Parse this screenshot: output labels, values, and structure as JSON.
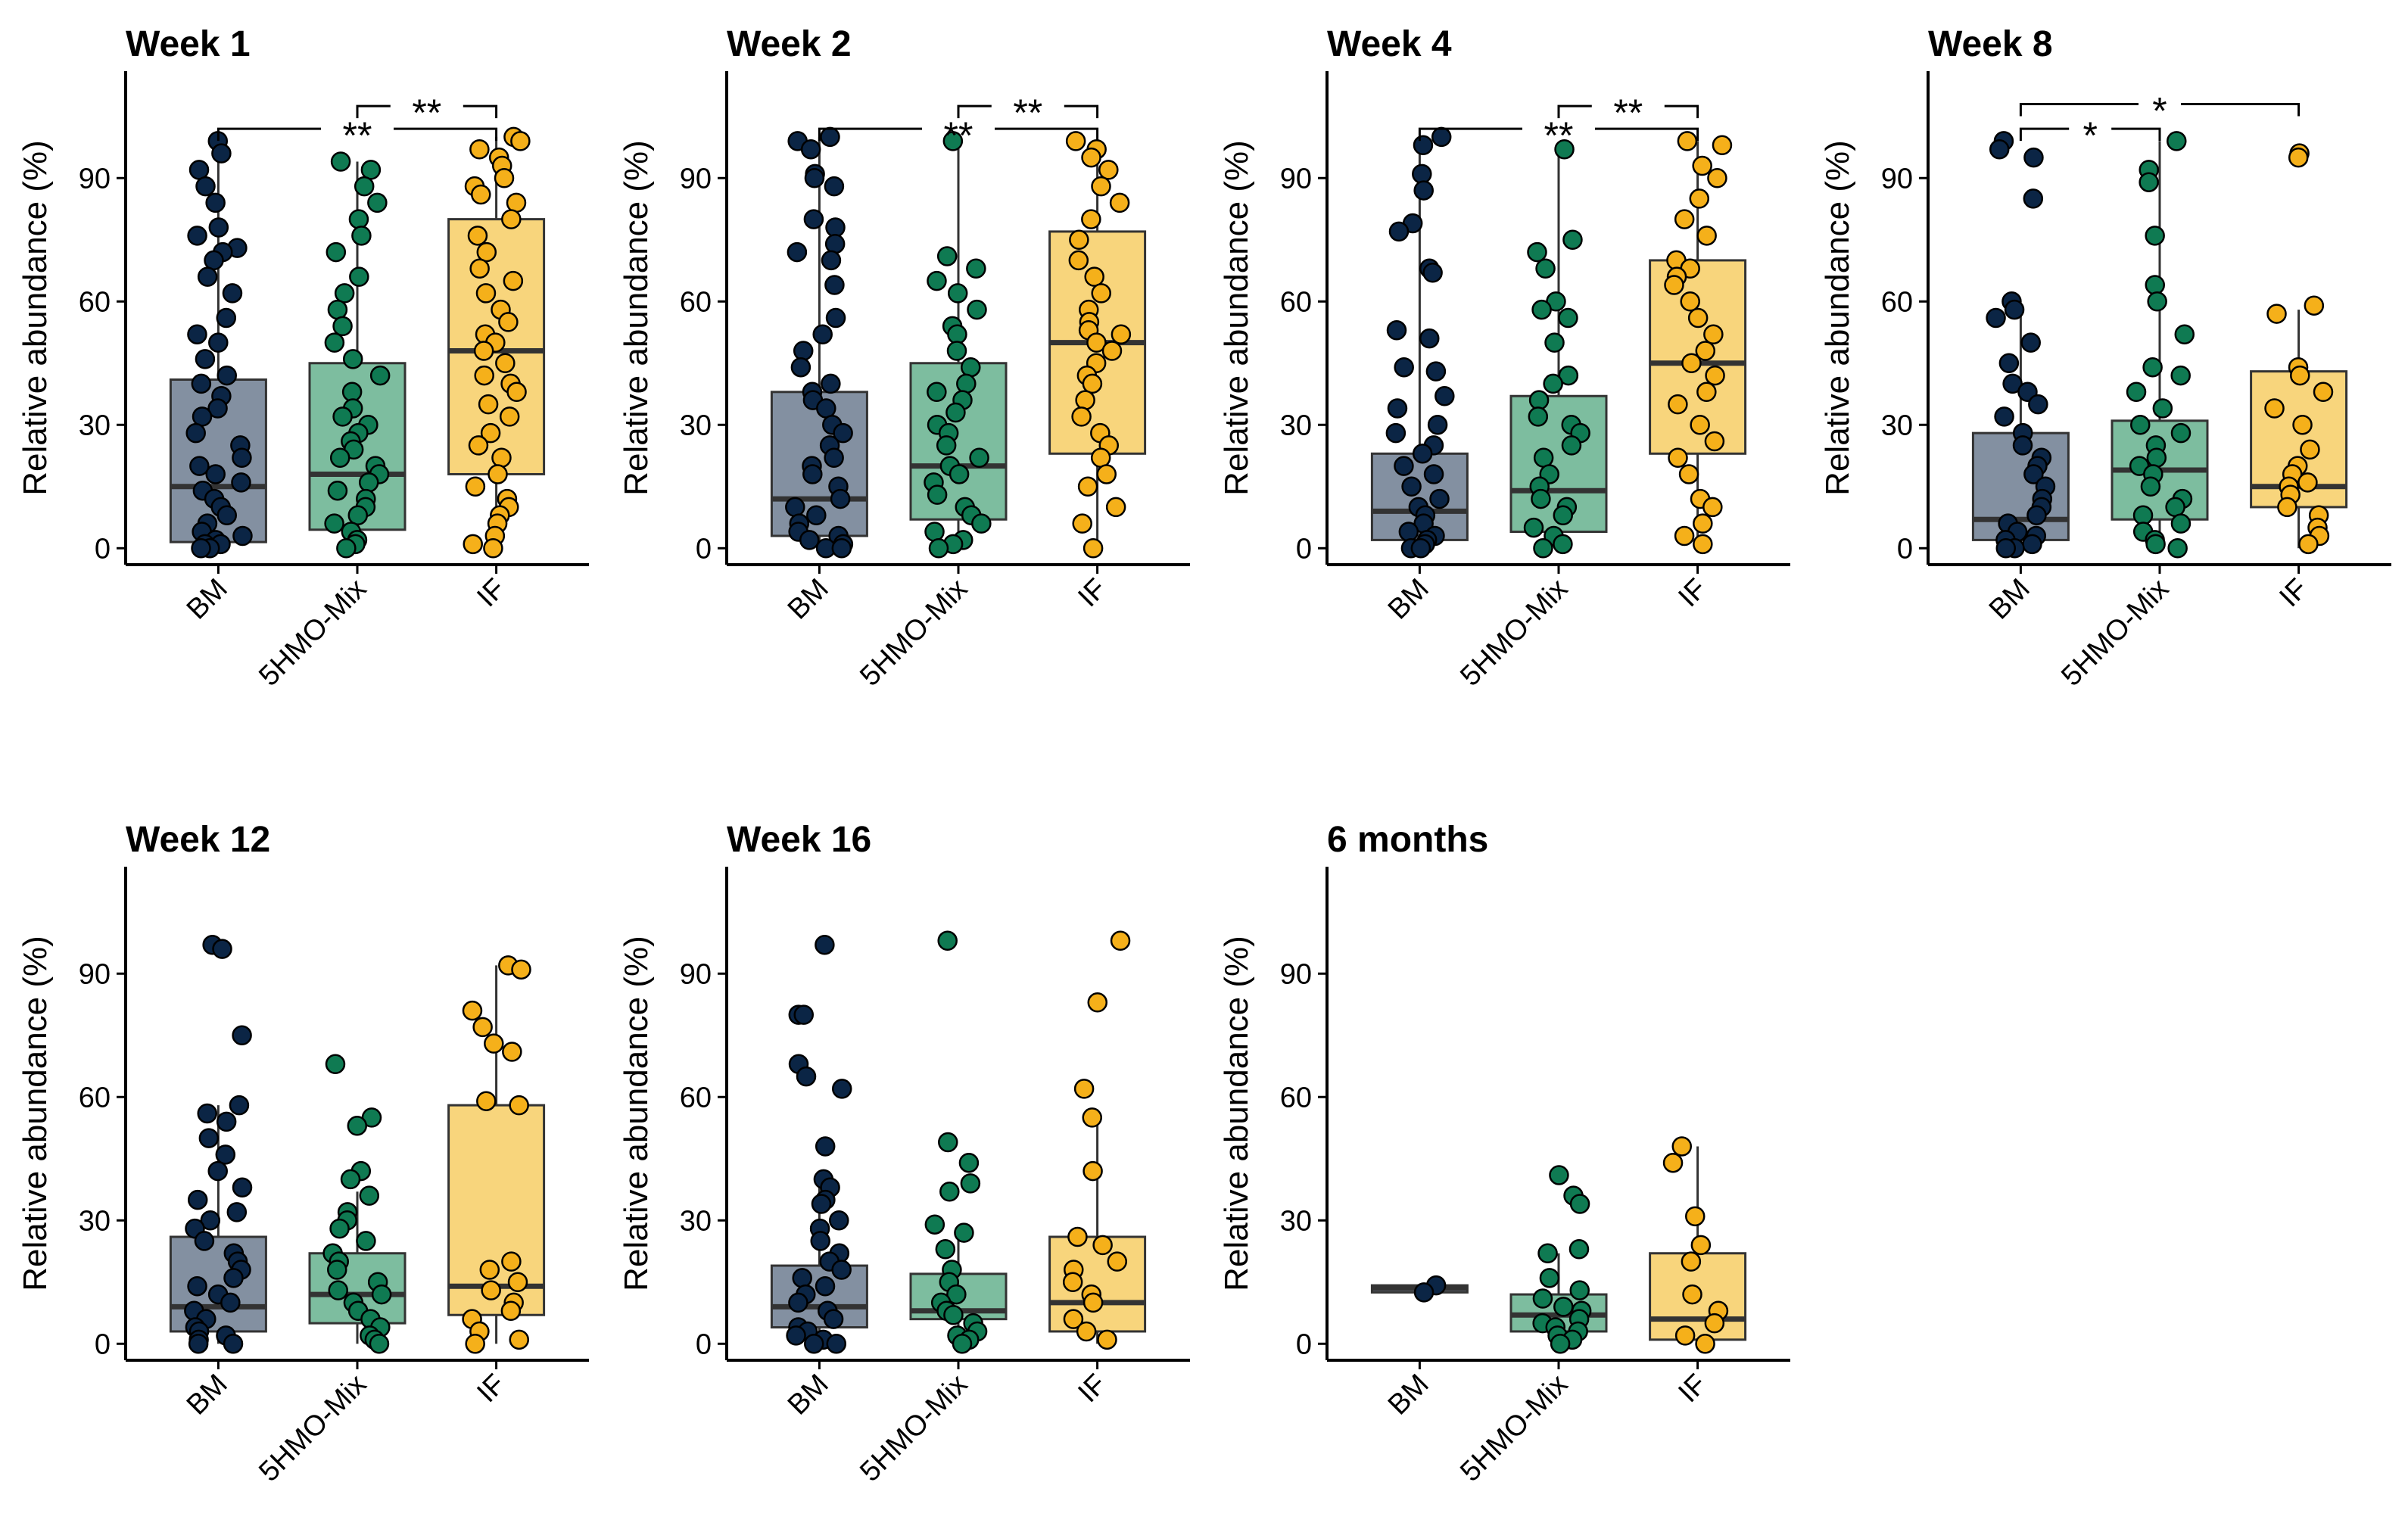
{
  "figure": {
    "ylabel": "Relative abundance (%)"
  },
  "colors": {
    "BM": {
      "box": "#8390a1",
      "point": "#0b2545"
    },
    "5HMO-Mix": {
      "box": "#7dbd9f",
      "point": "#0f7a52"
    },
    "IF": {
      "box": "#f8d57c",
      "point": "#f5b01a"
    },
    "median": "#333333",
    "outline": "#333333",
    "axis": "#000000"
  },
  "chart_data": [
    {
      "type": "box",
      "title": "Week 1",
      "ylabel": "Relative abundance (%)",
      "ylim": [
        -4,
        116
      ],
      "yticks": [
        0,
        30,
        60,
        90
      ],
      "categories": [
        "BM",
        "5HMO-Mix",
        "IF"
      ],
      "boxes": [
        {
          "q1": 1.5,
          "median": 15,
          "q3": 41,
          "wmin": 0,
          "wmax": 99
        },
        {
          "q1": 4.5,
          "median": 18,
          "q3": 45,
          "wmin": 0,
          "wmax": 94
        },
        {
          "q1": 18,
          "median": 48,
          "q3": 80,
          "wmin": 0,
          "wmax": 100
        }
      ],
      "points": [
        [
          99,
          96,
          92,
          88,
          84,
          78,
          76,
          73,
          72,
          70,
          66,
          62,
          56,
          52,
          50,
          46,
          42,
          40,
          37,
          34,
          32,
          28,
          25,
          22,
          20,
          18,
          16,
          14,
          12,
          10,
          8,
          6,
          4,
          3,
          2,
          1,
          1,
          0,
          0
        ],
        [
          94,
          92,
          88,
          84,
          80,
          76,
          72,
          66,
          62,
          58,
          54,
          50,
          46,
          42,
          38,
          34,
          32,
          30,
          28,
          26,
          24,
          22,
          20,
          18,
          16,
          14,
          12,
          10,
          8,
          6,
          4,
          2,
          1,
          0
        ],
        [
          100,
          99,
          97,
          95,
          93,
          90,
          88,
          86,
          84,
          80,
          76,
          72,
          68,
          65,
          62,
          58,
          55,
          52,
          50,
          48,
          45,
          42,
          40,
          38,
          35,
          32,
          28,
          25,
          22,
          18,
          15,
          12,
          10,
          8,
          6,
          3,
          1,
          0
        ]
      ],
      "comparisons": [
        {
          "from": 1,
          "to": 2,
          "label": "**",
          "y": 107.5
        },
        {
          "from": 0,
          "to": 2,
          "label": "**",
          "y": 102
        }
      ]
    },
    {
      "type": "box",
      "title": "Week 2",
      "ylabel": "Relative abundance (%)",
      "ylim": [
        -4,
        116
      ],
      "yticks": [
        0,
        30,
        60,
        90
      ],
      "categories": [
        "BM",
        "5HMO-Mix",
        "IF"
      ],
      "boxes": [
        {
          "q1": 3,
          "median": 12,
          "q3": 38,
          "wmin": 0,
          "wmax": 100
        },
        {
          "q1": 7,
          "median": 20,
          "q3": 45,
          "wmin": 0,
          "wmax": 99
        },
        {
          "q1": 23,
          "median": 50,
          "q3": 77,
          "wmin": 0,
          "wmax": 99
        }
      ],
      "points": [
        [
          100,
          99,
          97,
          91,
          90,
          88,
          80,
          78,
          74,
          72,
          70,
          64,
          56,
          52,
          48,
          44,
          40,
          38,
          36,
          34,
          30,
          28,
          25,
          22,
          20,
          18,
          15,
          12,
          10,
          8,
          6,
          4,
          3,
          2,
          1,
          0,
          0
        ],
        [
          99,
          71,
          68,
          65,
          62,
          58,
          54,
          52,
          48,
          44,
          40,
          38,
          36,
          33,
          30,
          28,
          25,
          22,
          20,
          18,
          16,
          13,
          10,
          8,
          6,
          4,
          2,
          1,
          0
        ],
        [
          99,
          97,
          95,
          92,
          88,
          84,
          80,
          75,
          70,
          66,
          62,
          58,
          55,
          53,
          52,
          50,
          48,
          45,
          42,
          40,
          36,
          32,
          28,
          25,
          22,
          18,
          15,
          10,
          6,
          0
        ]
      ],
      "comparisons": [
        {
          "from": 1,
          "to": 2,
          "label": "**",
          "y": 107.5
        },
        {
          "from": 0,
          "to": 2,
          "label": "**",
          "y": 102
        }
      ]
    },
    {
      "type": "box",
      "title": "Week 4",
      "ylabel": "Relative abundance (%)",
      "ylim": [
        -4,
        116
      ],
      "yticks": [
        0,
        30,
        60,
        90
      ],
      "categories": [
        "BM",
        "5HMO-Mix",
        "IF"
      ],
      "boxes": [
        {
          "q1": 2,
          "median": 9,
          "q3": 23,
          "wmin": 0,
          "wmax": 100
        },
        {
          "q1": 4,
          "median": 14,
          "q3": 37,
          "wmin": 0,
          "wmax": 97
        },
        {
          "q1": 23,
          "median": 45,
          "q3": 70,
          "wmin": 0,
          "wmax": 99
        }
      ],
      "points": [
        [
          100,
          98,
          91,
          87,
          79,
          77,
          68,
          67,
          53,
          51,
          44,
          43,
          37,
          34,
          30,
          28,
          25,
          23,
          20,
          18,
          15,
          12,
          10,
          8,
          6,
          4,
          3,
          2,
          1,
          0,
          0
        ],
        [
          97,
          75,
          72,
          68,
          60,
          58,
          56,
          50,
          42,
          40,
          36,
          32,
          30,
          28,
          25,
          22,
          18,
          15,
          12,
          10,
          8,
          5,
          3,
          1,
          0
        ],
        [
          99,
          98,
          93,
          90,
          85,
          80,
          76,
          70,
          68,
          66,
          64,
          60,
          56,
          52,
          48,
          45,
          42,
          38,
          35,
          30,
          26,
          22,
          18,
          12,
          10,
          6,
          3,
          1
        ]
      ],
      "comparisons": [
        {
          "from": 1,
          "to": 2,
          "label": "**",
          "y": 107.5
        },
        {
          "from": 0,
          "to": 2,
          "label": "**",
          "y": 102
        }
      ]
    },
    {
      "type": "box",
      "title": "Week 8",
      "ylabel": "Relative abundance (%)",
      "ylim": [
        -4,
        116
      ],
      "yticks": [
        0,
        30,
        60,
        90
      ],
      "categories": [
        "BM",
        "5HMO-Mix",
        "IF"
      ],
      "boxes": [
        {
          "q1": 2,
          "median": 7,
          "q3": 28,
          "wmin": 0,
          "wmax": 57
        },
        {
          "q1": 7,
          "median": 19,
          "q3": 31,
          "wmin": 0,
          "wmax": 99
        },
        {
          "q1": 10,
          "median": 15,
          "q3": 43,
          "wmin": 0,
          "wmax": 58
        }
      ],
      "points": [
        [
          99,
          97,
          95,
          85,
          60,
          58,
          56,
          50,
          45,
          40,
          38,
          35,
          32,
          28,
          25,
          22,
          20,
          18,
          15,
          12,
          10,
          8,
          6,
          4,
          3,
          2,
          1,
          0,
          0
        ],
        [
          99,
          92,
          89,
          76,
          64,
          60,
          52,
          44,
          42,
          38,
          34,
          30,
          28,
          25,
          22,
          20,
          18,
          15,
          12,
          10,
          8,
          6,
          4,
          2,
          1,
          0
        ],
        [
          96,
          95,
          59,
          57,
          44,
          42,
          38,
          34,
          30,
          24,
          20,
          18,
          16,
          15,
          13,
          10,
          8,
          5,
          3,
          1
        ]
      ],
      "comparisons": [
        {
          "from": 0,
          "to": 1,
          "label": "*",
          "y": 102
        },
        {
          "from": 0,
          "to": 2,
          "label": "*",
          "y": 108
        }
      ]
    },
    {
      "type": "box",
      "title": "Week 12",
      "ylabel": "Relative abundance (%)",
      "ylim": [
        -4,
        116
      ],
      "yticks": [
        0,
        30,
        60,
        90
      ],
      "categories": [
        "BM",
        "5HMO-Mix",
        "IF"
      ],
      "boxes": [
        {
          "q1": 3,
          "median": 9,
          "q3": 26,
          "wmin": 0,
          "wmax": 58
        },
        {
          "q1": 5,
          "median": 12,
          "q3": 22,
          "wmin": 0,
          "wmax": 37
        },
        {
          "q1": 7,
          "median": 14,
          "q3": 58,
          "wmin": 0,
          "wmax": 92
        }
      ],
      "points": [
        [
          97,
          96,
          75,
          58,
          56,
          54,
          50,
          46,
          42,
          38,
          35,
          32,
          30,
          28,
          25,
          22,
          20,
          18,
          16,
          14,
          12,
          10,
          8,
          6,
          4,
          3,
          2,
          1,
          0,
          0
        ],
        [
          68,
          55,
          53,
          42,
          40,
          36,
          32,
          30,
          28,
          25,
          22,
          20,
          18,
          15,
          13,
          12,
          10,
          8,
          6,
          4,
          2,
          1,
          0
        ],
        [
          92,
          91,
          81,
          77,
          73,
          71,
          59,
          58,
          20,
          18,
          15,
          13,
          10,
          8,
          6,
          3,
          1,
          0
        ]
      ],
      "comparisons": []
    },
    {
      "type": "box",
      "title": "Week 16",
      "ylabel": "Relative abundance (%)",
      "ylim": [
        -4,
        116
      ],
      "yticks": [
        0,
        30,
        60,
        90
      ],
      "categories": [
        "BM",
        "5HMO-Mix",
        "IF"
      ],
      "boxes": [
        {
          "q1": 4,
          "median": 9,
          "q3": 19,
          "wmin": 0,
          "wmax": 39
        },
        {
          "q1": 6,
          "median": 8,
          "q3": 17,
          "wmin": 0,
          "wmax": 28
        },
        {
          "q1": 3,
          "median": 10,
          "q3": 26,
          "wmin": 0,
          "wmax": 54
        }
      ],
      "points": [
        [
          97,
          80,
          80,
          68,
          65,
          62,
          48,
          40,
          38,
          35,
          34,
          30,
          28,
          25,
          22,
          20,
          18,
          16,
          14,
          12,
          10,
          8,
          6,
          4,
          3,
          2,
          1,
          0,
          0
        ],
        [
          98,
          49,
          44,
          39,
          37,
          29,
          27,
          23,
          18,
          15,
          12,
          10,
          8,
          7,
          5,
          3,
          2,
          1,
          0
        ],
        [
          98,
          83,
          62,
          55,
          42,
          26,
          24,
          20,
          18,
          15,
          12,
          10,
          6,
          3,
          1
        ]
      ],
      "comparisons": []
    },
    {
      "type": "box",
      "title": "6 months",
      "ylabel": "Relative abundance (%)",
      "ylim": [
        -4,
        116
      ],
      "yticks": [
        0,
        30,
        60,
        90
      ],
      "categories": [
        "BM",
        "5HMO-Mix",
        "IF"
      ],
      "boxes": [
        {
          "q1": 12.5,
          "median": 13.5,
          "q3": 14.2,
          "wmin": 12.5,
          "wmax": 14.2
        },
        {
          "q1": 3,
          "median": 7,
          "q3": 12,
          "wmin": 0,
          "wmax": 22
        },
        {
          "q1": 1,
          "median": 6,
          "q3": 22,
          "wmin": 0,
          "wmax": 48
        }
      ],
      "points": [
        [
          14.2,
          12.5
        ],
        [
          41,
          36,
          34,
          23,
          22,
          16,
          13,
          11,
          9,
          8,
          6,
          5,
          4,
          3,
          2,
          1,
          0
        ],
        [
          48,
          44,
          31,
          24,
          20,
          12,
          8,
          5,
          2,
          0
        ]
      ],
      "comparisons": []
    }
  ]
}
